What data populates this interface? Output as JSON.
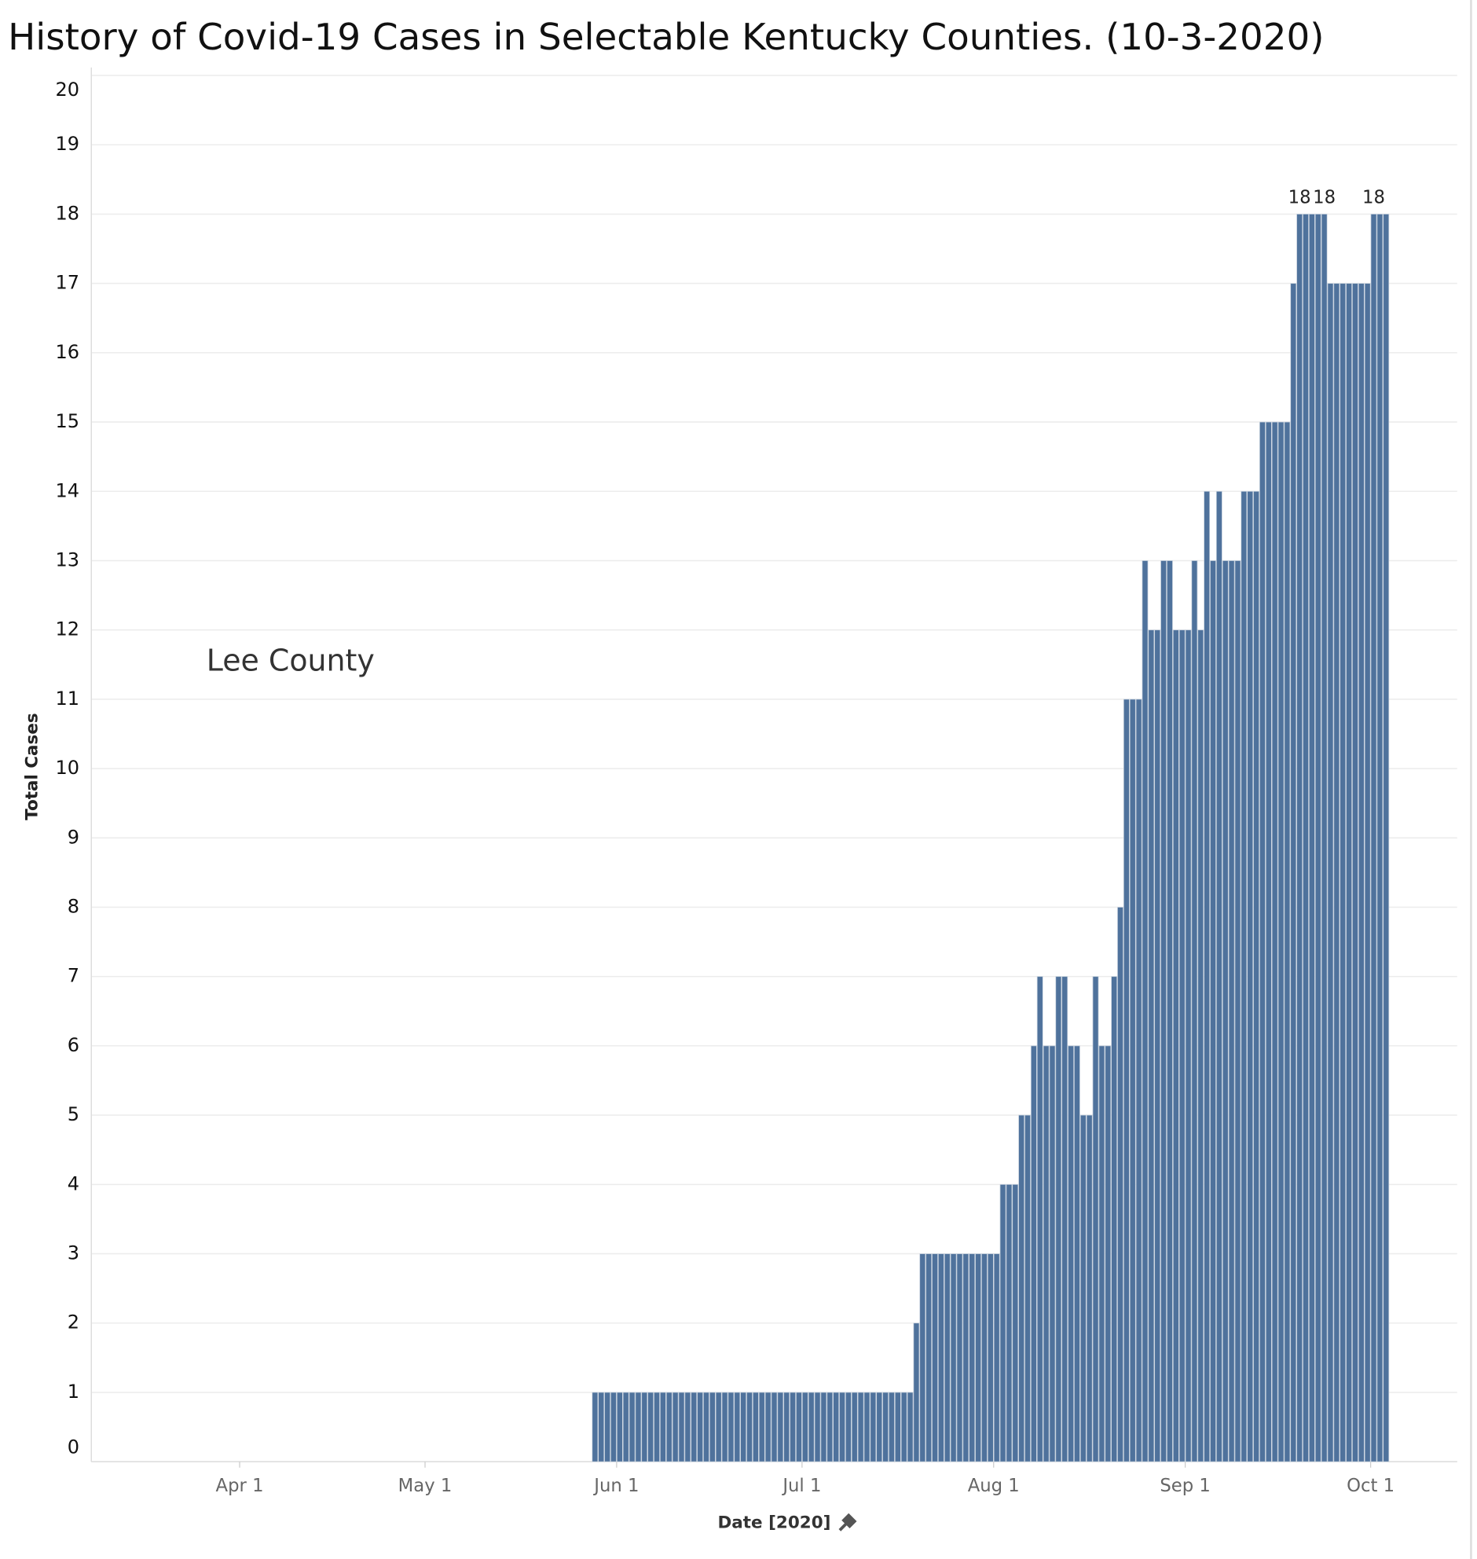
{
  "chart_data": {
    "type": "bar",
    "title": "History of Covid-19 Cases in Selectable Kentucky Counties. (10-3-2020)",
    "annotation": "Lee County",
    "x_label": "Date [2020]",
    "y_label": "Total Cases",
    "color": "#4f729c",
    "x": [
      "2020-05-28",
      "2020-05-29",
      "2020-05-30",
      "2020-05-31",
      "2020-06-01",
      "2020-06-02",
      "2020-06-03",
      "2020-06-04",
      "2020-06-05",
      "2020-06-06",
      "2020-06-07",
      "2020-06-08",
      "2020-06-09",
      "2020-06-10",
      "2020-06-11",
      "2020-06-12",
      "2020-06-13",
      "2020-06-14",
      "2020-06-15",
      "2020-06-16",
      "2020-06-17",
      "2020-06-18",
      "2020-06-19",
      "2020-06-20",
      "2020-06-21",
      "2020-06-22",
      "2020-06-23",
      "2020-06-24",
      "2020-06-25",
      "2020-06-26",
      "2020-06-27",
      "2020-06-28",
      "2020-06-29",
      "2020-06-30",
      "2020-07-01",
      "2020-07-02",
      "2020-07-03",
      "2020-07-04",
      "2020-07-05",
      "2020-07-06",
      "2020-07-07",
      "2020-07-08",
      "2020-07-09",
      "2020-07-10",
      "2020-07-11",
      "2020-07-12",
      "2020-07-13",
      "2020-07-14",
      "2020-07-15",
      "2020-07-16",
      "2020-07-17",
      "2020-07-18",
      "2020-07-19",
      "2020-07-20",
      "2020-07-21",
      "2020-07-22",
      "2020-07-23",
      "2020-07-24",
      "2020-07-25",
      "2020-07-26",
      "2020-07-27",
      "2020-07-28",
      "2020-07-29",
      "2020-07-30",
      "2020-07-31",
      "2020-08-01",
      "2020-08-02",
      "2020-08-03",
      "2020-08-04",
      "2020-08-05",
      "2020-08-06",
      "2020-08-07",
      "2020-08-08",
      "2020-08-09",
      "2020-08-10",
      "2020-08-11",
      "2020-08-12",
      "2020-08-13",
      "2020-08-14",
      "2020-08-15",
      "2020-08-16",
      "2020-08-17",
      "2020-08-18",
      "2020-08-19",
      "2020-08-20",
      "2020-08-21",
      "2020-08-22",
      "2020-08-23",
      "2020-08-24",
      "2020-08-25",
      "2020-08-26",
      "2020-08-27",
      "2020-08-28",
      "2020-08-29",
      "2020-08-30",
      "2020-08-31",
      "2020-09-01",
      "2020-09-02",
      "2020-09-03",
      "2020-09-04",
      "2020-09-05",
      "2020-09-06",
      "2020-09-07",
      "2020-09-08",
      "2020-09-09",
      "2020-09-10",
      "2020-09-11",
      "2020-09-12",
      "2020-09-13",
      "2020-09-14",
      "2020-09-15",
      "2020-09-16",
      "2020-09-17",
      "2020-09-18",
      "2020-09-19",
      "2020-09-20",
      "2020-09-21",
      "2020-09-22",
      "2020-09-23",
      "2020-09-24",
      "2020-09-25",
      "2020-09-26",
      "2020-09-27",
      "2020-09-28",
      "2020-09-29",
      "2020-09-30",
      "2020-10-01",
      "2020-10-02",
      "2020-10-03"
    ],
    "values": [
      1,
      1,
      1,
      1,
      1,
      1,
      1,
      1,
      1,
      1,
      1,
      1,
      1,
      1,
      1,
      1,
      1,
      1,
      1,
      1,
      1,
      1,
      1,
      1,
      1,
      1,
      1,
      1,
      1,
      1,
      1,
      1,
      1,
      1,
      1,
      1,
      1,
      1,
      1,
      1,
      1,
      1,
      1,
      1,
      1,
      1,
      1,
      1,
      1,
      1,
      1,
      1,
      2,
      3,
      3,
      3,
      3,
      3,
      3,
      3,
      3,
      3,
      3,
      3,
      3,
      3,
      4,
      4,
      4,
      5,
      5,
      6,
      7,
      6,
      6,
      7,
      7,
      6,
      6,
      5,
      5,
      7,
      6,
      6,
      7,
      8,
      11,
      11,
      11,
      13,
      12,
      12,
      13,
      13,
      12,
      12,
      12,
      13,
      12,
      14,
      13,
      14,
      13,
      13,
      13,
      14,
      14,
      14,
      15,
      15,
      15,
      15,
      15,
      17,
      18,
      18,
      18,
      18,
      18,
      17,
      17,
      17,
      17,
      17,
      17,
      17,
      18,
      18,
      18
    ],
    "xlim": [
      "2020-03-08",
      "2020-10-15"
    ],
    "xticks": [
      {
        "value": "2020-04-01",
        "label": "Apr 1"
      },
      {
        "value": "2020-05-01",
        "label": "May 1"
      },
      {
        "value": "2020-06-01",
        "label": "Jun 1"
      },
      {
        "value": "2020-07-01",
        "label": "Jul 1"
      },
      {
        "value": "2020-08-01",
        "label": "Aug 1"
      },
      {
        "value": "2020-09-01",
        "label": "Sep 1"
      },
      {
        "value": "2020-10-01",
        "label": "Oct 1"
      }
    ],
    "ylim": [
      0,
      20
    ],
    "yticks": [
      0,
      1,
      2,
      3,
      4,
      5,
      6,
      7,
      8,
      9,
      10,
      11,
      12,
      13,
      14,
      15,
      16,
      17,
      18,
      19,
      20
    ],
    "grid": true
  }
}
